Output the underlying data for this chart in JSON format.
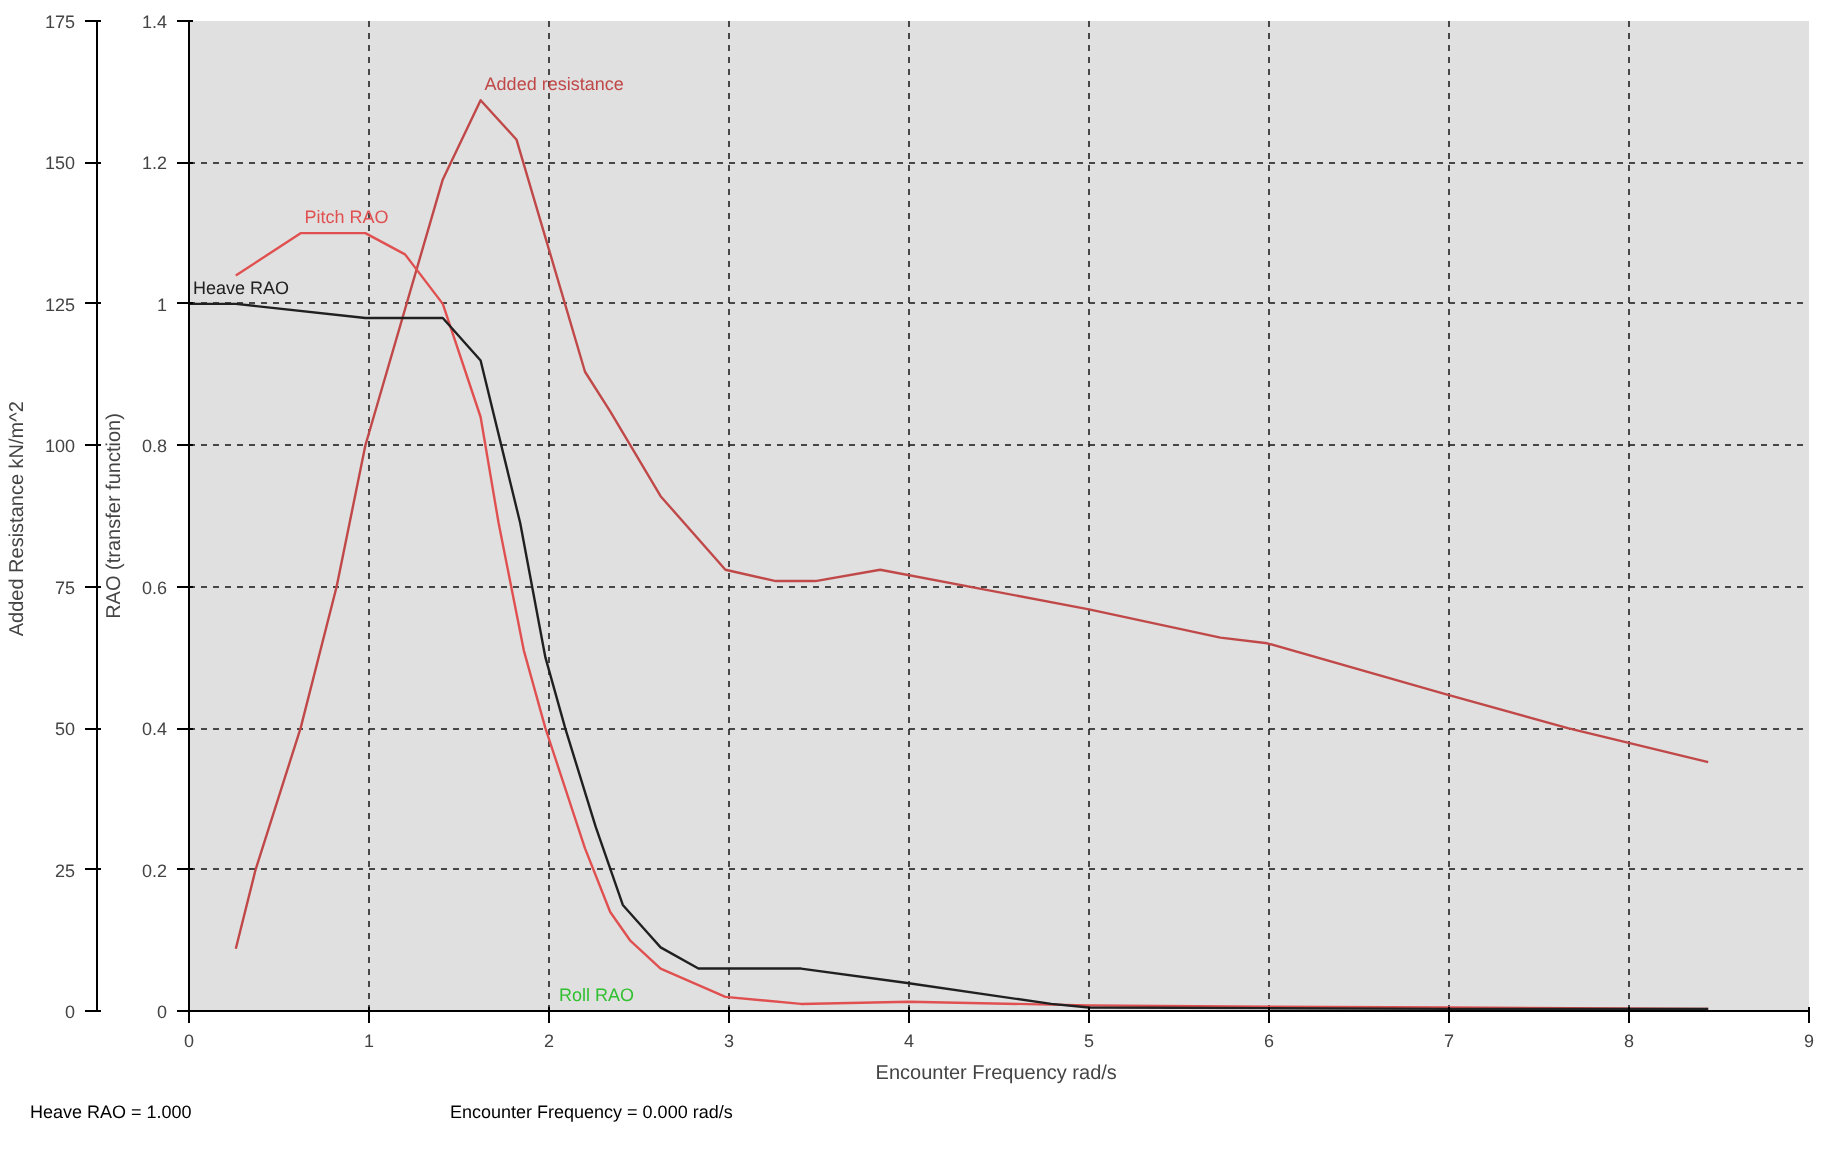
{
  "chart_data": {
    "type": "line",
    "xlabel": "Encounter Frequency  rad/s",
    "ylabel": "RAO (transfer function)",
    "y2label": "Added Resistance  kN/m^2",
    "xlim": [
      0,
      9
    ],
    "xticks": [
      0,
      1,
      2,
      3,
      4,
      5,
      6,
      7,
      8,
      9
    ],
    "ylim": [
      0,
      1.4
    ],
    "yticks": [
      0,
      0.2,
      0.4,
      0.6,
      0.8,
      1,
      1.2,
      1.4
    ],
    "y2lim": [
      0,
      175
    ],
    "y2ticks": [
      0,
      25,
      50,
      75,
      100,
      125,
      150,
      175
    ],
    "grid": true,
    "line_style": "solid",
    "series": [
      {
        "name": "Added resistance",
        "color": "#c04848",
        "axis": "y2",
        "x": [
          0.26,
          0.37,
          0.62,
          0.82,
          0.98,
          1.41,
          1.62,
          1.82,
          2.2,
          2.34,
          2.62,
          2.98,
          3.26,
          3.48,
          3.84,
          5.0,
          5.73,
          5.99,
          6.98,
          7.66,
          8.44
        ],
        "values": [
          11,
          25,
          50,
          75,
          100,
          147,
          161,
          154,
          113,
          106,
          91,
          78,
          76,
          76,
          78,
          71,
          66,
          65,
          56,
          50,
          44
        ]
      },
      {
        "name": "Pitch RAO",
        "color": "#e05050",
        "x": [
          0.26,
          0.62,
          0.98,
          1.2,
          1.41,
          1.62,
          1.72,
          1.86,
          1.98,
          2.2,
          2.34,
          2.45,
          2.62,
          2.98,
          3.4,
          4.0,
          5.0,
          6.0,
          7.0,
          8.44
        ],
        "values": [
          1.04,
          1.1,
          1.1,
          1.07,
          1.0,
          0.84,
          0.69,
          0.51,
          0.4,
          0.23,
          0.14,
          0.1,
          0.06,
          0.02,
          0.01,
          0.013,
          0.008,
          0.006,
          0.005,
          0.003
        ]
      },
      {
        "name": "Heave RAO",
        "color": "#202020",
        "x": [
          0,
          0.26,
          0.98,
          1.41,
          1.62,
          1.84,
          1.98,
          2.09,
          2.26,
          2.41,
          2.55,
          2.62,
          2.83,
          3.0,
          3.4,
          3.98,
          4.79,
          5.0,
          6.0,
          7.0,
          8.44
        ],
        "values": [
          1.0,
          1.0,
          0.98,
          0.98,
          0.92,
          0.69,
          0.5,
          0.4,
          0.26,
          0.15,
          0.11,
          0.09,
          0.06,
          0.06,
          0.06,
          0.04,
          0.01,
          0.005,
          0.004,
          0.003,
          0.003
        ]
      }
    ],
    "annotations": [
      "Roll RAO",
      "Heave RAO = 1.000",
      "Encounter Frequency = 0.000 rad/s"
    ]
  }
}
